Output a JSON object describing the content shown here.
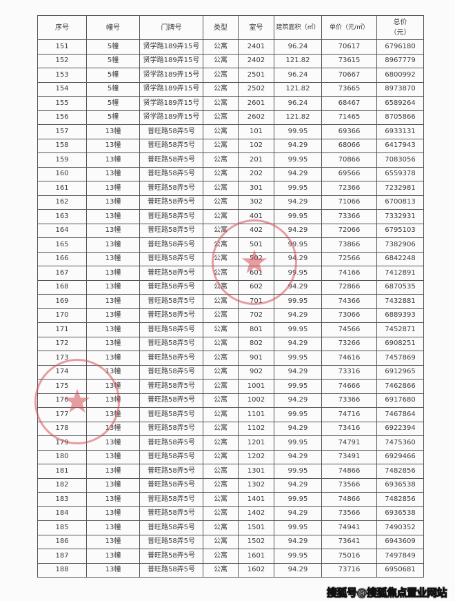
{
  "table": {
    "headers": [
      "序号",
      "幢号",
      "门牌号",
      "类型",
      "室号",
      "建筑面积（㎡）",
      "单价（元/㎡）",
      "总价",
      "（元）"
    ],
    "rows": [
      [
        "151",
        "5幢",
        "贤学路189弄15号",
        "公寓",
        "2401",
        "96.24",
        "70617",
        "6796180"
      ],
      [
        "152",
        "5幢",
        "贤学路189弄15号",
        "公寓",
        "2402",
        "121.82",
        "73615",
        "8967779"
      ],
      [
        "153",
        "5幢",
        "贤学路189弄15号",
        "公寓",
        "2501",
        "96.24",
        "70667",
        "6800992"
      ],
      [
        "154",
        "5幢",
        "贤学路189弄15号",
        "公寓",
        "2502",
        "121.82",
        "73665",
        "8973870"
      ],
      [
        "155",
        "5幢",
        "贤学路189弄15号",
        "公寓",
        "2601",
        "96.24",
        "68467",
        "6589264"
      ],
      [
        "156",
        "5幢",
        "贤学路189弄15号",
        "公寓",
        "2602",
        "121.82",
        "71465",
        "8705866"
      ],
      [
        "157",
        "13幢",
        "普旺路58弄5号",
        "公寓",
        "101",
        "99.95",
        "69366",
        "6933131"
      ],
      [
        "158",
        "13幢",
        "普旺路58弄5号",
        "公寓",
        "102",
        "94.29",
        "68066",
        "6417943"
      ],
      [
        "159",
        "13幢",
        "普旺路58弄5号",
        "公寓",
        "201",
        "99.95",
        "70866",
        "7083056"
      ],
      [
        "160",
        "13幢",
        "普旺路58弄5号",
        "公寓",
        "202",
        "94.29",
        "69566",
        "6559378"
      ],
      [
        "161",
        "13幢",
        "普旺路58弄5号",
        "公寓",
        "301",
        "99.95",
        "72366",
        "7232981"
      ],
      [
        "162",
        "13幢",
        "普旺路58弄5号",
        "公寓",
        "302",
        "94.29",
        "71066",
        "6700813"
      ],
      [
        "163",
        "13幢",
        "普旺路58弄5号",
        "公寓",
        "401",
        "99.95",
        "73366",
        "7332931"
      ],
      [
        "164",
        "13幢",
        "普旺路58弄5号",
        "公寓",
        "402",
        "94.29",
        "72066",
        "6795103"
      ],
      [
        "165",
        "13幢",
        "普旺路58弄5号",
        "公寓",
        "501",
        "99.95",
        "73866",
        "7382906"
      ],
      [
        "166",
        "13幢",
        "普旺路58弄5号",
        "公寓",
        "502",
        "94.29",
        "72566",
        "6842248"
      ],
      [
        "167",
        "13幢",
        "普旺路58弄5号",
        "公寓",
        "601",
        "99.95",
        "74166",
        "7412891"
      ],
      [
        "168",
        "13幢",
        "普旺路58弄5号",
        "公寓",
        "602",
        "94.29",
        "72866",
        "6870535"
      ],
      [
        "169",
        "13幢",
        "普旺路58弄5号",
        "公寓",
        "701",
        "99.95",
        "74366",
        "7432881"
      ],
      [
        "170",
        "13幢",
        "普旺路58弄5号",
        "公寓",
        "702",
        "94.29",
        "73066",
        "6889393"
      ],
      [
        "171",
        "13幢",
        "普旺路58弄5号",
        "公寓",
        "801",
        "99.95",
        "74566",
        "7452871"
      ],
      [
        "172",
        "13幢",
        "普旺路58弄5号",
        "公寓",
        "802",
        "94.29",
        "73266",
        "6908251"
      ],
      [
        "173",
        "13幢",
        "普旺路58弄5号",
        "公寓",
        "901",
        "99.95",
        "74616",
        "7457869"
      ],
      [
        "174",
        "13幢",
        "普旺路58弄5号",
        "公寓",
        "902",
        "94.29",
        "73316",
        "6912965"
      ],
      [
        "175",
        "13幢",
        "普旺路58弄5号",
        "公寓",
        "1001",
        "99.95",
        "74666",
        "7462866"
      ],
      [
        "176",
        "13幢",
        "普旺路58弄5号",
        "公寓",
        "1002",
        "94.29",
        "73366",
        "6917680"
      ],
      [
        "177",
        "13幢",
        "普旺路58弄5号",
        "公寓",
        "1101",
        "99.95",
        "74716",
        "7467864"
      ],
      [
        "178",
        "13幢",
        "普旺路58弄5号",
        "公寓",
        "1102",
        "94.29",
        "73416",
        "6922394"
      ],
      [
        "179",
        "13幢",
        "普旺路58弄5号",
        "公寓",
        "1201",
        "99.95",
        "74791",
        "7475360"
      ],
      [
        "180",
        "13幢",
        "普旺路58弄5号",
        "公寓",
        "1202",
        "94.29",
        "73491",
        "6929466"
      ],
      [
        "181",
        "13幢",
        "普旺路58弄5号",
        "公寓",
        "1301",
        "99.95",
        "74866",
        "7482856"
      ],
      [
        "182",
        "13幢",
        "普旺路58弄5号",
        "公寓",
        "1302",
        "94.29",
        "73566",
        "6936538"
      ],
      [
        "183",
        "13幢",
        "普旺路58弄5号",
        "公寓",
        "1401",
        "99.95",
        "74866",
        "7482856"
      ],
      [
        "184",
        "13幢",
        "普旺路58弄5号",
        "公寓",
        "1402",
        "94.29",
        "73566",
        "6936538"
      ],
      [
        "185",
        "13幢",
        "普旺路58弄5号",
        "公寓",
        "1501",
        "99.95",
        "74941",
        "7490352"
      ],
      [
        "186",
        "13幢",
        "普旺路58弄5号",
        "公寓",
        "1502",
        "94.29",
        "73641",
        "6943609"
      ],
      [
        "187",
        "13幢",
        "普旺路58弄5号",
        "公寓",
        "1601",
        "99.95",
        "75016",
        "7497849"
      ],
      [
        "188",
        "13幢",
        "普旺路58弄5号",
        "公寓",
        "1602",
        "94.29",
        "73716",
        "6950681"
      ]
    ]
  },
  "watermark": "搜狐号@搜狐焦点置业网站",
  "stamp_color": "#d6505a"
}
